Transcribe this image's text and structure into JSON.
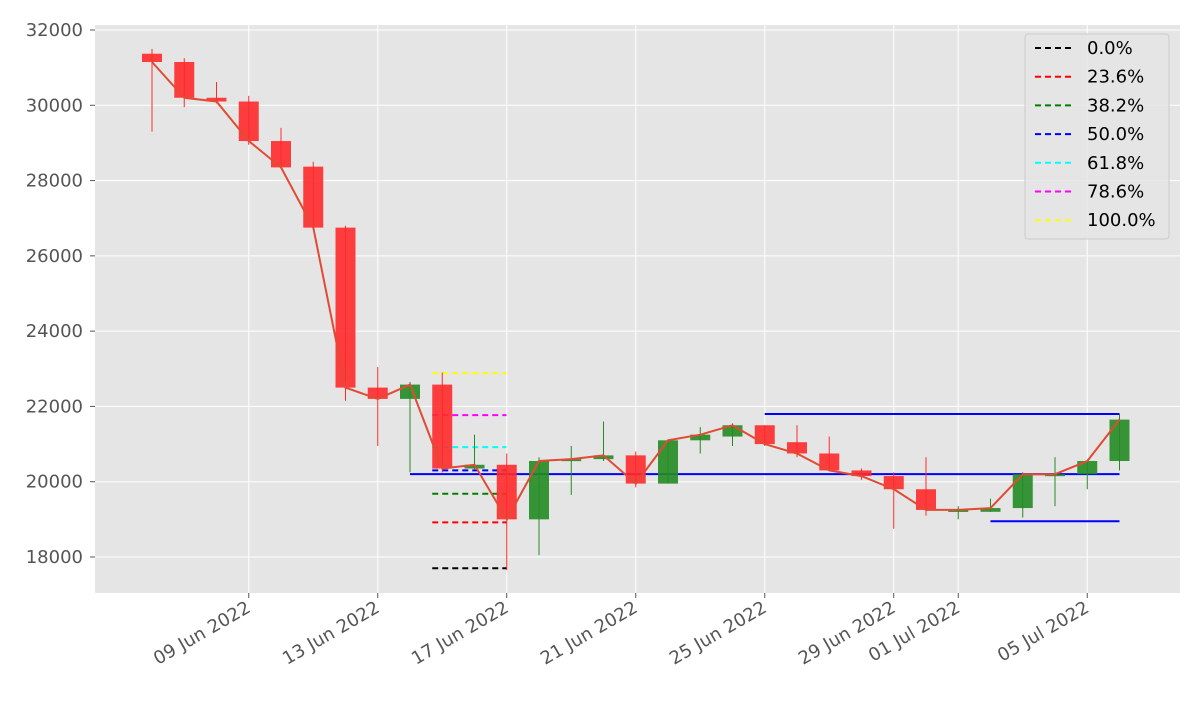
{
  "chart_data": {
    "type": "candlestick",
    "title": "",
    "xlabel": "",
    "ylabel": "",
    "ylim": [
      17000,
      32200
    ],
    "y_ticks": [
      18000,
      20000,
      22000,
      24000,
      26000,
      28000,
      30000,
      32000
    ],
    "x_tick_labels": [
      "09 Jun 2022",
      "13 Jun 2022",
      "17 Jun 2022",
      "21 Jun 2022",
      "25 Jun 2022",
      "29 Jun 2022",
      "01 Jul 2022",
      "05 Jul 2022"
    ],
    "x_tick_dates": [
      "2022-06-09",
      "2022-06-13",
      "2022-06-17",
      "2022-06-21",
      "2022-06-25",
      "2022-06-29",
      "2022-07-01",
      "2022-07-05"
    ],
    "x_range": [
      "2022-06-05",
      "2022-07-09"
    ],
    "grid": true,
    "legend_position": "top-right",
    "candles": [
      {
        "date": "2022-06-06",
        "open": 31370,
        "high": 31500,
        "low": 29300,
        "close": 31150
      },
      {
        "date": "2022-06-07",
        "open": 31150,
        "high": 31250,
        "low": 29950,
        "close": 30200
      },
      {
        "date": "2022-06-08",
        "open": 30200,
        "high": 30620,
        "low": 30050,
        "close": 30100
      },
      {
        "date": "2022-06-09",
        "open": 30100,
        "high": 30250,
        "low": 28950,
        "close": 29050
      },
      {
        "date": "2022-06-10",
        "open": 29050,
        "high": 29400,
        "low": 28350,
        "close": 28350
      },
      {
        "date": "2022-06-11",
        "open": 28370,
        "high": 28500,
        "low": 26700,
        "close": 26750
      },
      {
        "date": "2022-06-12",
        "open": 26750,
        "high": 26800,
        "low": 22150,
        "close": 22500
      },
      {
        "date": "2022-06-13",
        "open": 22500,
        "high": 23050,
        "low": 20950,
        "close": 22200
      },
      {
        "date": "2022-06-14",
        "open": 22200,
        "high": 22650,
        "low": 20250,
        "close": 22580
      },
      {
        "date": "2022-06-15",
        "open": 22580,
        "high": 22900,
        "low": 20250,
        "close": 20350
      },
      {
        "date": "2022-06-16",
        "open": 20350,
        "high": 21250,
        "low": 20330,
        "close": 20450
      },
      {
        "date": "2022-06-17",
        "open": 20450,
        "high": 20750,
        "low": 17650,
        "close": 19000
      },
      {
        "date": "2022-06-18",
        "open": 19000,
        "high": 20650,
        "low": 18050,
        "close": 20550
      },
      {
        "date": "2022-06-19",
        "open": 20550,
        "high": 20950,
        "low": 19650,
        "close": 20600
      },
      {
        "date": "2022-06-20",
        "open": 20600,
        "high": 21600,
        "low": 20550,
        "close": 20700
      },
      {
        "date": "2022-06-21",
        "open": 20700,
        "high": 20800,
        "low": 19850,
        "close": 19950
      },
      {
        "date": "2022-06-22",
        "open": 19950,
        "high": 21100,
        "low": 19950,
        "close": 21100
      },
      {
        "date": "2022-06-23",
        "open": 21100,
        "high": 21450,
        "low": 20750,
        "close": 21250
      },
      {
        "date": "2022-06-24",
        "open": 21200,
        "high": 21550,
        "low": 20950,
        "close": 21500
      },
      {
        "date": "2022-06-25",
        "open": 21500,
        "high": 21500,
        "low": 20950,
        "close": 21000
      },
      {
        "date": "2022-06-26",
        "open": 21050,
        "high": 21500,
        "low": 20650,
        "close": 20750
      },
      {
        "date": "2022-06-27",
        "open": 20750,
        "high": 21200,
        "low": 20300,
        "close": 20300
      },
      {
        "date": "2022-06-28",
        "open": 20300,
        "high": 20350,
        "low": 20050,
        "close": 20150
      },
      {
        "date": "2022-06-29",
        "open": 20150,
        "high": 20250,
        "low": 18750,
        "close": 19800
      },
      {
        "date": "2022-06-30",
        "open": 19800,
        "high": 20650,
        "low": 19100,
        "close": 19250
      },
      {
        "date": "2022-07-01",
        "open": 19250,
        "high": 19350,
        "low": 19000,
        "close": 19250
      },
      {
        "date": "2022-07-02",
        "open": 19200,
        "high": 19550,
        "low": 19200,
        "close": 19300
      },
      {
        "date": "2022-07-03",
        "open": 19300,
        "high": 20250,
        "low": 19050,
        "close": 20200
      },
      {
        "date": "2022-07-04",
        "open": 20200,
        "high": 20650,
        "low": 19350,
        "close": 20200
      },
      {
        "date": "2022-07-05",
        "open": 20200,
        "high": 20550,
        "low": 19800,
        "close": 20550
      },
      {
        "date": "2022-07-06",
        "open": 20550,
        "high": 21800,
        "low": 20300,
        "close": 21650
      }
    ],
    "fibonacci": {
      "start_date": "2022-06-15",
      "end_date": "2022-06-16",
      "levels": [
        {
          "label": "0.0%",
          "value": 17700,
          "color": "#000000"
        },
        {
          "label": "23.6%",
          "value": 18920,
          "color": "#ff0000"
        },
        {
          "label": "38.2%",
          "value": 19680,
          "color": "#008000"
        },
        {
          "label": "50.0%",
          "value": 20300,
          "color": "#0000ff"
        },
        {
          "label": "61.8%",
          "value": 20920,
          "color": "#00ffff"
        },
        {
          "label": "78.6%",
          "value": 21770,
          "color": "#ff00ff"
        },
        {
          "label": "100.0%",
          "value": 22880,
          "color": "#ffff00"
        }
      ]
    },
    "blue_lines": [
      {
        "x1": "2022-06-14",
        "x2": "2022-07-06",
        "y1": 20200,
        "y2": 20200
      },
      {
        "x1": "2022-06-25",
        "x2": "2022-07-06",
        "y1": 21800,
        "y2": 21800
      },
      {
        "x1": "2022-07-02",
        "x2": "2022-07-06",
        "y1": 18950,
        "y2": 18950
      }
    ],
    "colors": {
      "up": "#228b22",
      "down": "#ff2a2a",
      "close_line": "#e24a33",
      "background": "#e5e5e5",
      "grid": "#ffffff",
      "blue_line": "#0000ff"
    }
  }
}
